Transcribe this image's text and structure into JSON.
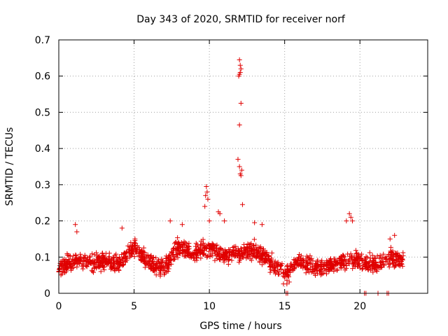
{
  "chart_data": {
    "type": "scatter",
    "title": "Day 343 of 2020, SRMTID for receiver norf",
    "xlabel": "GPS time / hours",
    "ylabel": "SRMTID / TECUs",
    "xlim": [
      0,
      24.5
    ],
    "ylim": [
      0,
      0.7
    ],
    "xticks": [
      0,
      5,
      10,
      15,
      20
    ],
    "yticks": [
      0,
      0.1,
      0.2,
      0.3,
      0.4,
      0.5,
      0.6,
      0.7
    ],
    "xtick_labels": [
      "0",
      "5",
      "10",
      "15",
      "20"
    ],
    "ytick_labels": [
      "0",
      "0.1",
      "0.2",
      "0.3",
      "0.4",
      "0.5",
      "0.6",
      "0.7"
    ],
    "grid": true,
    "marker": "+",
    "color": "#e00000",
    "series": [
      {
        "name": "SRMTID",
        "x_start": 0.0,
        "x_end": 22.9,
        "trend": [
          [
            0.0,
            0.07
          ],
          [
            1.0,
            0.09
          ],
          [
            2.0,
            0.08
          ],
          [
            3.0,
            0.09
          ],
          [
            4.0,
            0.08
          ],
          [
            5.0,
            0.13
          ],
          [
            6.0,
            0.08
          ],
          [
            7.0,
            0.07
          ],
          [
            8.0,
            0.13
          ],
          [
            9.0,
            0.11
          ],
          [
            10.0,
            0.13
          ],
          [
            11.0,
            0.1
          ],
          [
            12.0,
            0.11
          ],
          [
            13.0,
            0.12
          ],
          [
            14.0,
            0.09
          ],
          [
            15.0,
            0.05
          ],
          [
            16.0,
            0.09
          ],
          [
            17.0,
            0.07
          ],
          [
            18.0,
            0.08
          ],
          [
            19.0,
            0.09
          ],
          [
            20.0,
            0.09
          ],
          [
            21.0,
            0.08
          ],
          [
            22.0,
            0.1
          ],
          [
            22.9,
            0.09
          ]
        ],
        "spread": 0.035,
        "outliers": [
          [
            1.1,
            0.19
          ],
          [
            1.2,
            0.17
          ],
          [
            4.2,
            0.18
          ],
          [
            7.4,
            0.2
          ],
          [
            8.2,
            0.19
          ],
          [
            9.7,
            0.24
          ],
          [
            9.75,
            0.27
          ],
          [
            9.8,
            0.295
          ],
          [
            9.85,
            0.28
          ],
          [
            9.9,
            0.26
          ],
          [
            10.0,
            0.2
          ],
          [
            10.6,
            0.225
          ],
          [
            10.7,
            0.22
          ],
          [
            11.0,
            0.2
          ],
          [
            11.9,
            0.37
          ],
          [
            12.0,
            0.35
          ],
          [
            12.05,
            0.33
          ],
          [
            12.1,
            0.325
          ],
          [
            12.15,
            0.34
          ],
          [
            12.2,
            0.245
          ],
          [
            12.0,
            0.465
          ],
          [
            12.1,
            0.525
          ],
          [
            11.95,
            0.6
          ],
          [
            12.0,
            0.605
          ],
          [
            12.05,
            0.61
          ],
          [
            12.1,
            0.62
          ],
          [
            12.05,
            0.63
          ],
          [
            12.0,
            0.645
          ],
          [
            13.0,
            0.195
          ],
          [
            13.5,
            0.19
          ],
          [
            19.1,
            0.2
          ],
          [
            19.3,
            0.22
          ],
          [
            19.4,
            0.21
          ],
          [
            19.5,
            0.2
          ],
          [
            22.0,
            0.15
          ],
          [
            22.3,
            0.16
          ],
          [
            15.1,
            0.0
          ],
          [
            15.2,
            0.0
          ],
          [
            20.3,
            0.0
          ],
          [
            20.4,
            0.0
          ],
          [
            21.2,
            0.0
          ],
          [
            21.8,
            0.0
          ],
          [
            21.9,
            0.0
          ]
        ]
      }
    ]
  }
}
